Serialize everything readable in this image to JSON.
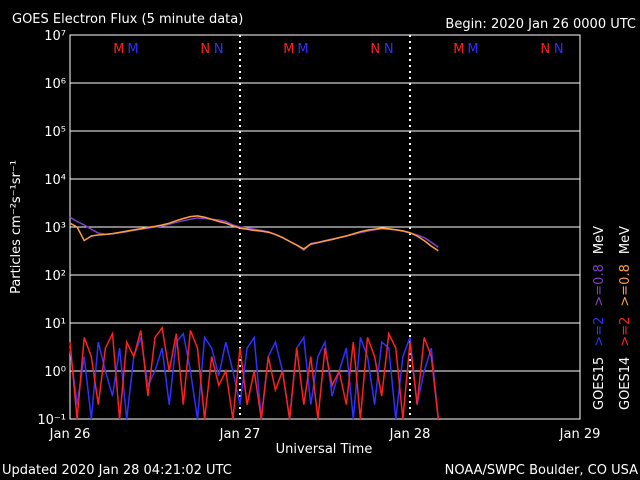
{
  "chart_data": {
    "type": "line",
    "title": "GOES Electron Flux (5 minute data)",
    "subtitle": "Begin: 2020 Jan 26 0000 UTC",
    "ylabel": "Particles cm⁻²s⁻¹sr⁻¹",
    "xlabel": "Universal Time",
    "footer_left": "Updated 2020 Jan 28 04:21:02 UTC",
    "footer_right": "NOAA/SWPC Boulder, CO USA",
    "log_y": true,
    "grid": true,
    "threshold": 1000,
    "unit": "MeV",
    "satellites": [
      "GOES15",
      "GOES14"
    ],
    "xlim": [
      0,
      72
    ],
    "xticks": [
      {
        "value": 0,
        "label": "Jan 26"
      },
      {
        "value": 24,
        "label": "Jan 27"
      },
      {
        "value": 48,
        "label": "Jan 28"
      },
      {
        "value": 72,
        "label": "Jan 29"
      }
    ],
    "ylim": [
      0.1,
      10000000
    ],
    "yticks": [
      {
        "value": 0.1,
        "label": "10⁻¹"
      },
      {
        "value": 1,
        "label": "10⁰"
      },
      {
        "value": 10,
        "label": "10¹"
      },
      {
        "value": 100,
        "label": "10²"
      },
      {
        "value": 1000,
        "label": "10³"
      },
      {
        "value": 10000,
        "label": "10⁴"
      },
      {
        "value": 100000,
        "label": "10⁵"
      },
      {
        "value": 1000000,
        "label": "10⁶"
      },
      {
        "value": 10000000,
        "label": "10⁷"
      }
    ],
    "annotations": [
      {
        "label": "M",
        "x": 6.9,
        "color": "#ff2020"
      },
      {
        "label": "M",
        "x": 8.9,
        "color": "#3030ff"
      },
      {
        "label": "N",
        "x": 19.1,
        "color": "#ff2020"
      },
      {
        "label": "N",
        "x": 21.0,
        "color": "#3030ff"
      },
      {
        "label": "M",
        "x": 30.9,
        "color": "#ff2020"
      },
      {
        "label": "M",
        "x": 32.9,
        "color": "#3030ff"
      },
      {
        "label": "N",
        "x": 43.1,
        "color": "#ff2020"
      },
      {
        "label": "N",
        "x": 45.0,
        "color": "#3030ff"
      },
      {
        "label": "M",
        "x": 54.9,
        "color": "#ff2020"
      },
      {
        "label": "M",
        "x": 56.9,
        "color": "#3030ff"
      },
      {
        "label": "N",
        "x": 67.1,
        "color": "#ff2020"
      },
      {
        "label": "N",
        "x": 69.0,
        "color": "#3030ff"
      }
    ],
    "x": [
      0,
      1,
      2,
      3,
      4,
      5,
      6,
      7,
      8,
      9,
      10,
      11,
      12,
      13,
      14,
      15,
      16,
      17,
      18,
      19,
      20,
      21,
      22,
      23,
      24,
      25,
      26,
      27,
      28,
      29,
      30,
      31,
      32,
      33,
      34,
      35,
      36,
      37,
      38,
      39,
      40,
      41,
      42,
      43,
      44,
      45,
      46,
      47,
      48,
      49,
      50,
      51,
      52
    ],
    "series": [
      {
        "name": ">=2",
        "satellite": 0,
        "color": "#3030ff",
        "values": [
          3,
          0.2,
          2,
          0.1,
          4,
          1,
          0.3,
          3,
          0.1,
          2,
          5,
          0.5,
          1,
          3,
          0.2,
          4,
          6,
          1,
          0.1,
          5,
          3,
          0.8,
          4,
          1,
          0.2,
          3,
          5,
          0.1,
          2,
          4,
          1,
          0.1,
          3,
          5,
          0.2,
          2,
          4,
          0.3,
          1,
          3,
          0.1,
          5,
          2,
          0.2,
          4,
          3,
          0.1,
          2,
          5,
          0.2,
          1,
          3,
          0.1
        ]
      },
      {
        "name": ">=2",
        "satellite": 1,
        "color": "#ff2020",
        "values": [
          4,
          0.1,
          5,
          2,
          0.2,
          3,
          6,
          0.1,
          4,
          2,
          7,
          0.3,
          5,
          8,
          1,
          6,
          0.2,
          7,
          3,
          0.1,
          2,
          0.5,
          1,
          0.1,
          3,
          0.2,
          1,
          0.1,
          2,
          0.4,
          1,
          0.1,
          3,
          0.2,
          2,
          0.1,
          3,
          0.5,
          1,
          0.2,
          4,
          0.1,
          5,
          2,
          0.3,
          6,
          3,
          0.1,
          4,
          0.2,
          5,
          2,
          0.1
        ]
      },
      {
        "name": ">=0.8",
        "satellite": 0,
        "color": "#8040c8",
        "values": [
          1600,
          1300,
          1100,
          900,
          750,
          700,
          720,
          760,
          800,
          850,
          900,
          950,
          1000,
          1050,
          1150,
          1250,
          1350,
          1450,
          1550,
          1500,
          1450,
          1400,
          1300,
          1100,
          1000,
          950,
          900,
          850,
          800,
          700,
          600,
          500,
          420,
          330,
          450,
          480,
          520,
          560,
          600,
          650,
          700,
          760,
          820,
          880,
          920,
          900,
          870,
          820,
          750,
          680,
          600,
          480,
          380
        ]
      },
      {
        "name": ">=0.8",
        "satellite": 1,
        "color": "#ffa040",
        "values": [
          1200,
          1000,
          520,
          650,
          680,
          700,
          730,
          770,
          820,
          870,
          920,
          980,
          1030,
          1100,
          1200,
          1350,
          1500,
          1650,
          1700,
          1600,
          1450,
          1300,
          1200,
          1050,
          950,
          900,
          850,
          820,
          780,
          700,
          600,
          500,
          420,
          350,
          440,
          470,
          510,
          550,
          600,
          650,
          720,
          800,
          860,
          900,
          950,
          920,
          880,
          830,
          760,
          650,
          520,
          400,
          320
        ]
      }
    ]
  }
}
